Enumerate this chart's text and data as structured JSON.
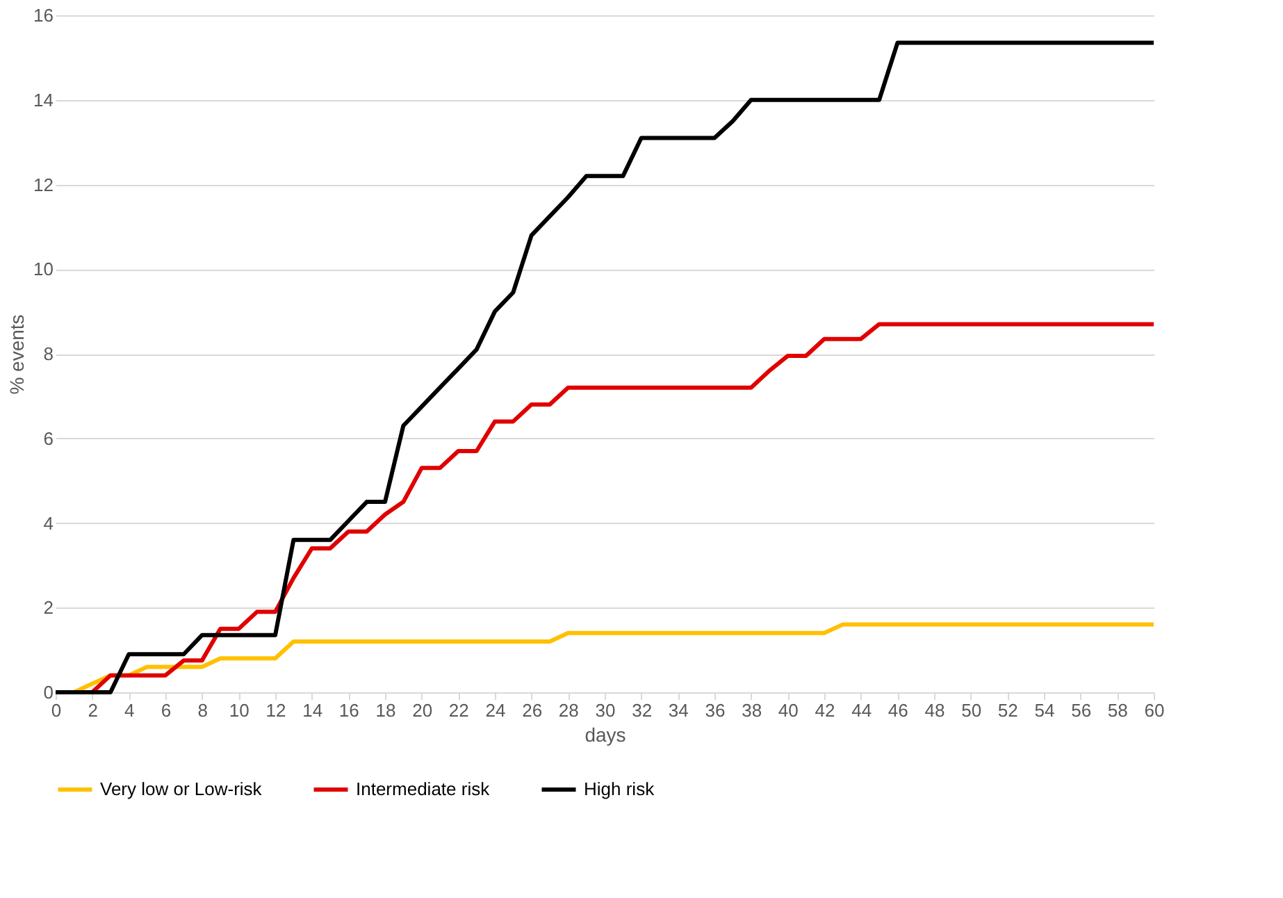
{
  "chart_data": {
    "type": "line",
    "xlabel": "days",
    "ylabel": "% events",
    "x": [
      0,
      1,
      2,
      3,
      4,
      5,
      6,
      7,
      8,
      9,
      10,
      11,
      12,
      13,
      14,
      15,
      16,
      17,
      18,
      19,
      20,
      21,
      22,
      23,
      24,
      25,
      26,
      27,
      28,
      29,
      30,
      31,
      32,
      33,
      34,
      35,
      36,
      37,
      38,
      39,
      40,
      41,
      42,
      43,
      44,
      45,
      46,
      47,
      48,
      49,
      50,
      51,
      52,
      53,
      54,
      55,
      56,
      57,
      58,
      59,
      60
    ],
    "xlim": [
      0,
      60
    ],
    "xticks": [
      0,
      2,
      4,
      6,
      8,
      10,
      12,
      14,
      16,
      18,
      20,
      22,
      24,
      26,
      28,
      30,
      32,
      34,
      36,
      38,
      40,
      42,
      44,
      46,
      48,
      50,
      52,
      54,
      56,
      58,
      60
    ],
    "ylim": [
      0,
      16
    ],
    "yticks": [
      0,
      2,
      4,
      6,
      8,
      10,
      12,
      14,
      16
    ],
    "grid": "y",
    "legend": "bottom",
    "marker": "none",
    "line_style": "solid",
    "series": [
      {
        "name": "Very low or Low-risk",
        "color": "#ffc000",
        "values": [
          0,
          0,
          0.2,
          0.4,
          0.4,
          0.6,
          0.6,
          0.6,
          0.6,
          0.8,
          0.8,
          0.8,
          0.8,
          1.2,
          1.2,
          1.2,
          1.2,
          1.2,
          1.2,
          1.2,
          1.2,
          1.2,
          1.2,
          1.2,
          1.2,
          1.2,
          1.2,
          1.2,
          1.4,
          1.4,
          1.4,
          1.4,
          1.4,
          1.4,
          1.4,
          1.4,
          1.4,
          1.4,
          1.4,
          1.4,
          1.4,
          1.4,
          1.4,
          1.6,
          1.6,
          1.6,
          1.6,
          1.6,
          1.6,
          1.6,
          1.6,
          1.6,
          1.6,
          1.6,
          1.6,
          1.6,
          1.6,
          1.6,
          1.6,
          1.6,
          1.6
        ]
      },
      {
        "name": "Intermediate risk",
        "color": "#e00000",
        "values": [
          0,
          0,
          0,
          0.4,
          0.4,
          0.4,
          0.4,
          0.75,
          0.75,
          1.5,
          1.5,
          1.9,
          1.9,
          2.7,
          3.4,
          3.4,
          3.8,
          3.8,
          4.2,
          4.5,
          5.3,
          5.3,
          5.7,
          5.7,
          6.4,
          6.4,
          6.8,
          6.8,
          7.2,
          7.2,
          7.2,
          7.2,
          7.2,
          7.2,
          7.2,
          7.2,
          7.2,
          7.2,
          7.2,
          7.6,
          7.95,
          7.95,
          8.35,
          8.35,
          8.35,
          8.7,
          8.7,
          8.7,
          8.7,
          8.7,
          8.7,
          8.7,
          8.7,
          8.7,
          8.7,
          8.7,
          8.7,
          8.7,
          8.7,
          8.7,
          8.7
        ]
      },
      {
        "name": "High risk",
        "color": "#000000",
        "values": [
          0,
          0,
          0,
          0,
          0.9,
          0.9,
          0.9,
          0.9,
          1.35,
          1.35,
          1.35,
          1.35,
          1.35,
          3.6,
          3.6,
          3.6,
          4.05,
          4.5,
          4.5,
          6.3,
          6.75,
          7.2,
          7.65,
          8.1,
          9.0,
          9.45,
          10.8,
          11.25,
          11.7,
          12.2,
          12.2,
          12.2,
          13.1,
          13.1,
          13.1,
          13.1,
          13.1,
          13.5,
          14.0,
          14.0,
          14.0,
          14.0,
          14.0,
          14.0,
          14.0,
          14.0,
          15.35,
          15.35,
          15.35,
          15.35,
          15.35,
          15.35,
          15.35,
          15.35,
          15.35,
          15.35,
          15.35,
          15.35,
          15.35,
          15.35,
          15.35
        ]
      }
    ]
  }
}
